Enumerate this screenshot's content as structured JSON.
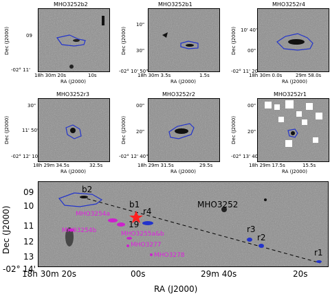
{
  "panels": [
    {
      "title": "MHO3252b2",
      "yticks": [
        "09",
        "-02° 11'"
      ],
      "xticks": [
        "18h 30m 20s",
        "10s"
      ],
      "xlabel": "RA (J2000)",
      "ylabel": "Dec (J2000)"
    },
    {
      "title": "MHO3252b1",
      "yticks": [
        "10\"",
        "30\"",
        "-02° 10' 50\""
      ],
      "xticks": [
        "18h 30m 3.5s",
        "1.5s"
      ],
      "xlabel": "RA (J2000)",
      "ylabel": "Dec (J2000)"
    },
    {
      "title": "MHO3252r4",
      "yticks": [
        "10' 40\"",
        "00\"",
        "-02° 11' 20\""
      ],
      "xticks": [
        "18h 30m 0.0s",
        "29m 58.0s"
      ],
      "xlabel": "RA (J2000)",
      "ylabel": "Dec (J2000)"
    },
    {
      "title": "MHO3252r3",
      "yticks": [
        "30\"",
        "11' 50\"",
        "-02° 12' 10\""
      ],
      "xticks": [
        "18h 29m 34.5s",
        "32.5s"
      ],
      "xlabel": "RA (J2000)",
      "ylabel": "Dec (J2000)"
    },
    {
      "title": "MHO3252r2",
      "yticks": [
        "00\"",
        "20\"",
        "-02° 12' 40\""
      ],
      "xticks": [
        "18h 29m 31.5s",
        "29.5s"
      ],
      "xlabel": "RA (J2000)",
      "ylabel": "Dec (J2000)"
    },
    {
      "title": "MHO3252r1",
      "yticks": [
        "00\"",
        "20\"",
        "-02° 13' 40\""
      ],
      "xticks": [
        "18h 29m 17.5s",
        "15.5s"
      ],
      "xlabel": "RA (J2000)",
      "ylabel": "Dec (J2000)"
    }
  ],
  "main": {
    "ylabel": "Dec (J2000)",
    "xlabel": "RA (J2000)",
    "yticks": [
      "09",
      "10",
      "11",
      "12",
      "13",
      "-02° 14'"
    ],
    "xticks": [
      "18h 30m 20s",
      "00s",
      "29m 40s",
      "20s"
    ],
    "labels_black": [
      "b2",
      "b1",
      "r4",
      "MHO3252",
      "19",
      "r3",
      "r2",
      "r1"
    ],
    "labels_magenta": [
      "MHO3254a",
      "MHO3254b",
      "MHO3255a&b",
      "MHO3277",
      "MHO3278"
    ],
    "colors": {
      "contour": "#2233cc",
      "magenta": "#e020e0",
      "star": "#ff2020"
    }
  }
}
